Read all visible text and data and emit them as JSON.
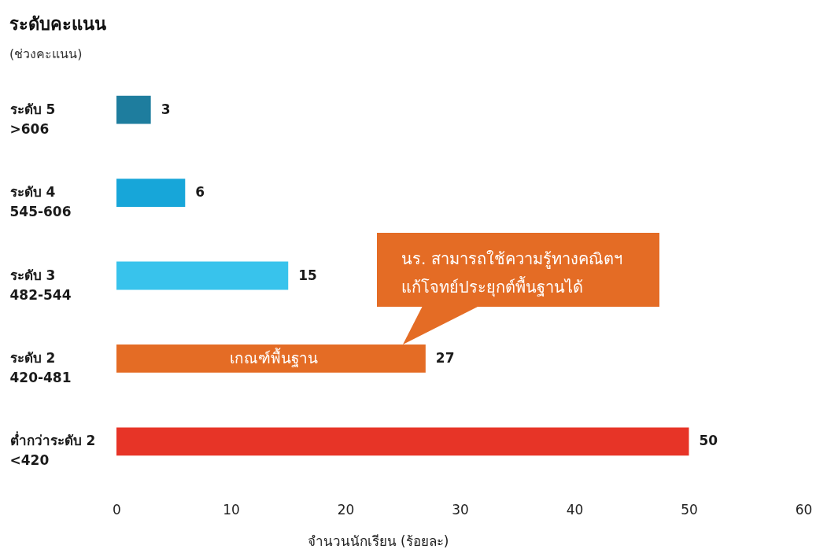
{
  "chart_data": {
    "type": "bar",
    "orientation": "horizontal",
    "title": "ระดับคะแนน",
    "subtitle": "(ช่วงคะแนน)",
    "xlabel": "จำนวนนักเรียน (ร้อยละ)",
    "categories": [
      "ระดับ 5\n>606",
      "ระดับ 4\n545-606",
      "ระดับ 3\n482-544",
      "ระดับ 2\n420-481",
      "ต่ำกว่าระดับ 2\n<420"
    ],
    "values": [
      3,
      6,
      15,
      27,
      50
    ],
    "colors": [
      "#1e7d9e",
      "#17a6d9",
      "#38c3ec",
      "#e46c25",
      "#e73427"
    ],
    "xlim": [
      0,
      60
    ],
    "xticks": [
      0,
      10,
      20,
      30,
      40,
      50,
      60
    ],
    "data_labels": true,
    "annotations": [
      "เกณฑ์พื้นฐาน",
      "นร. สามารถใช้ความรู้ทางคณิตฯ\nแก้โจทย์ประยุกต์พื้นฐานได้"
    ]
  }
}
